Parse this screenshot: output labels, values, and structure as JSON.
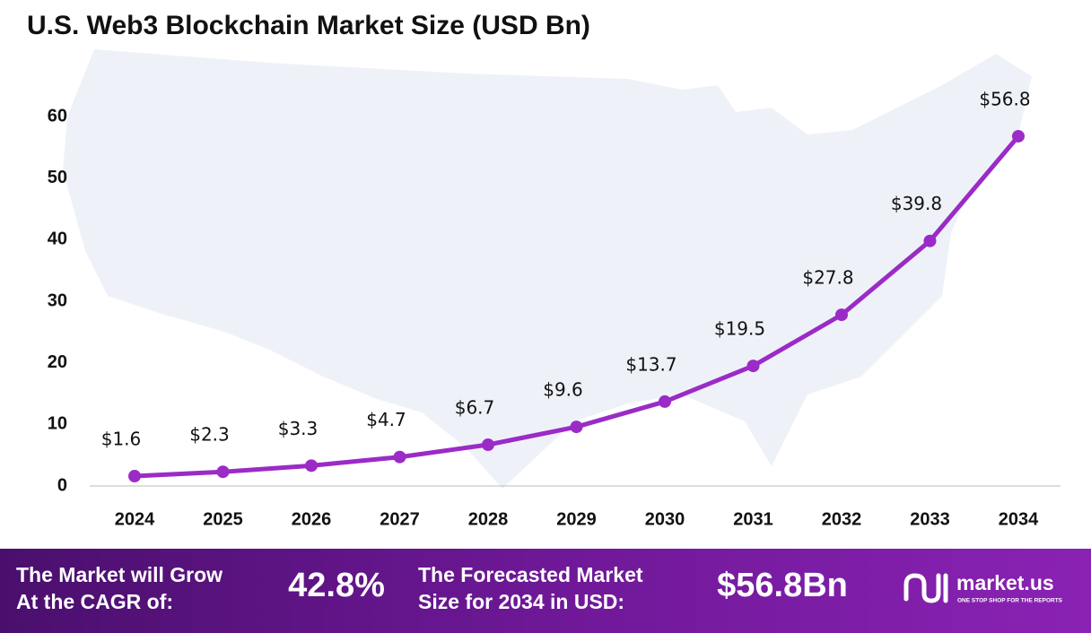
{
  "chart_data": {
    "type": "line",
    "title": "U.S. Web3 Blockchain Market Size (USD Bn)",
    "categories": [
      "2024",
      "2025",
      "2026",
      "2027",
      "2028",
      "2029",
      "2030",
      "2031",
      "2032",
      "2033",
      "2034"
    ],
    "values": [
      1.6,
      2.3,
      3.3,
      4.7,
      6.7,
      9.6,
      13.7,
      19.5,
      27.8,
      39.8,
      56.8
    ],
    "value_labels": [
      "$1.6",
      "$2.3",
      "$3.3",
      "$4.7",
      "$6.7",
      "$9.6",
      "$13.7",
      "$19.5",
      "$27.8",
      "$39.8",
      "$56.8"
    ],
    "color": "#9b2bc6",
    "ylim": [
      0,
      60
    ],
    "yticks": [
      0,
      10,
      20,
      30,
      40,
      50,
      60
    ],
    "grid": false
  },
  "footer": {
    "cagr_text": [
      "The Market will Grow",
      "At the CAGR of:"
    ],
    "cagr_value": "42.8%",
    "forecast_text": [
      "The Forecasted Market",
      "Size for 2034 in USD:"
    ],
    "forecast_value": "$56.8Bn",
    "brand": "market.us",
    "tagline": "ONE STOP SHOP FOR THE REPORTS"
  }
}
